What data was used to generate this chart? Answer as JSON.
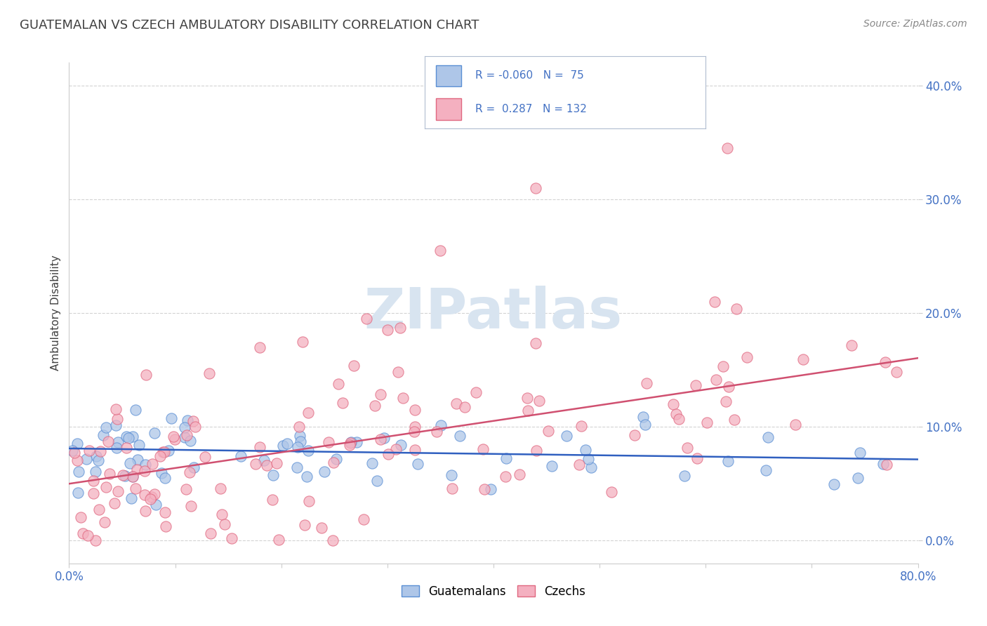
{
  "title": "GUATEMALAN VS CZECH AMBULATORY DISABILITY CORRELATION CHART",
  "source": "Source: ZipAtlas.com",
  "ylabel": "Ambulatory Disability",
  "xmin": 0.0,
  "xmax": 0.8,
  "ymin": -0.02,
  "ymax": 0.42,
  "blue_fill": "#aec6e8",
  "pink_fill": "#f4b0c0",
  "blue_edge": "#5b8fd4",
  "pink_edge": "#e06880",
  "blue_line_color": "#3060c0",
  "pink_line_color": "#d05070",
  "watermark_color": "#d8e4f0",
  "title_color": "#404040",
  "axis_label_color": "#4472c4",
  "grid_color": "#c8c8c8",
  "blue_R": -0.06,
  "blue_N": 75,
  "pink_R": 0.287,
  "pink_N": 132,
  "blue_slope": -0.012,
  "blue_intercept": 0.081,
  "pink_slope": 0.138,
  "pink_intercept": 0.05,
  "yticks": [
    0.0,
    0.1,
    0.2,
    0.3,
    0.4
  ],
  "xtick_show": [
    0.0,
    0.8
  ],
  "background_color": "#ffffff"
}
